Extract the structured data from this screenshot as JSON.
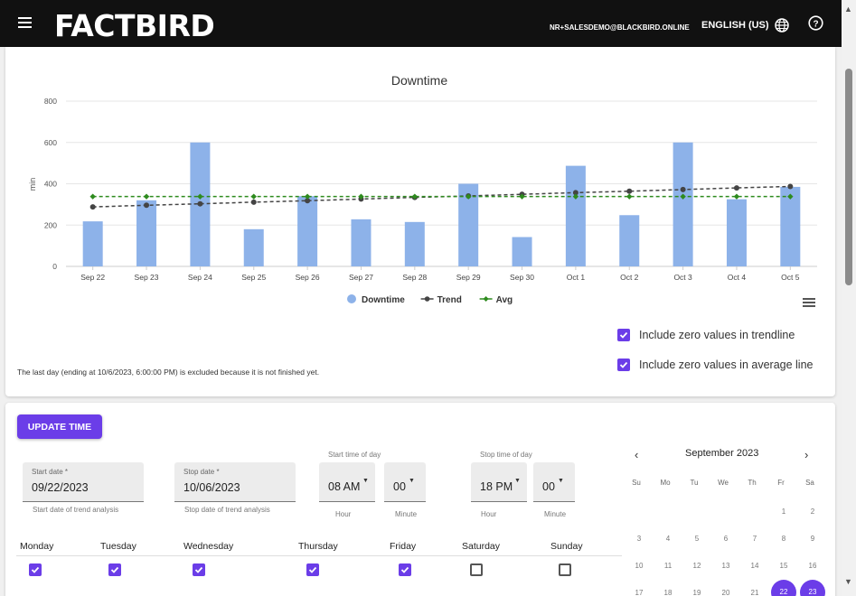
{
  "header": {
    "logo": "FACTBIRD",
    "user_email": "NR+SALESDEMO@BLACKBIRD.ONLINE",
    "language": "ENGLISH (US)"
  },
  "chart_data": {
    "type": "bar",
    "title": "Downtime",
    "ylabel": "min",
    "xlabel": "",
    "ylim": [
      0,
      800
    ],
    "yticks": [
      0,
      200,
      400,
      600,
      800
    ],
    "categories": [
      "Sep 22",
      "Sep 23",
      "Sep 24",
      "Sep 25",
      "Sep 26",
      "Sep 27",
      "Sep 28",
      "Sep 29",
      "Sep 30",
      "Oct 1",
      "Oct 2",
      "Oct 3",
      "Oct 4",
      "Oct 5"
    ],
    "series": [
      {
        "name": "Downtime",
        "kind": "bar",
        "color": "#8db2e9",
        "values": [
          218,
          320,
          600,
          180,
          340,
          228,
          215,
          400,
          142,
          487,
          248,
          600,
          325,
          385
        ]
      },
      {
        "name": "Trend",
        "kind": "line",
        "color": "#444444",
        "values": [
          288,
          296,
          303,
          311,
          318,
          326,
          334,
          341,
          349,
          357,
          364,
          372,
          380,
          387
        ]
      },
      {
        "name": "Avg",
        "kind": "line",
        "color": "#2e8b1e",
        "values": [
          338,
          338,
          338,
          338,
          338,
          338,
          338,
          338,
          338,
          338,
          338,
          338,
          338,
          338
        ]
      }
    ],
    "legend_position": "bottom",
    "grid": true
  },
  "options": {
    "trendline_zero": "Include zero values in trendline",
    "average_zero": "Include zero values in average line",
    "footnote": "The last day (ending at 10/6/2023, 6:00:00 PM) is excluded because it is not finished yet."
  },
  "form": {
    "update_button": "UPDATE TIME",
    "start_date": {
      "label": "Start date *",
      "value": "09/22/2023",
      "helper": "Start date of trend analysis"
    },
    "stop_date": {
      "label": "Stop date *",
      "value": "10/06/2023",
      "helper": "Stop date of trend analysis"
    },
    "start_time": {
      "label": "Start time of day",
      "hour": "08 AM",
      "minute": "00"
    },
    "stop_time": {
      "label": "Stop time of day",
      "hour": "18 PM",
      "minute": "00"
    },
    "hour_label": "Hour",
    "minute_label": "Minute",
    "days": [
      {
        "name": "Monday",
        "checked": true
      },
      {
        "name": "Tuesday",
        "checked": true
      },
      {
        "name": "Wednesday",
        "checked": true
      },
      {
        "name": "Thursday",
        "checked": true
      },
      {
        "name": "Friday",
        "checked": true
      },
      {
        "name": "Saturday",
        "checked": false
      },
      {
        "name": "Sunday",
        "checked": false
      }
    ]
  },
  "calendar": {
    "prev": "‹",
    "next": "›",
    "month": "September 2023",
    "dow": [
      "Su",
      "Mo",
      "Tu",
      "We",
      "Th",
      "Fr",
      "Sa"
    ],
    "rows": [
      [
        "",
        "",
        "",
        "",
        "",
        "1",
        "2"
      ],
      [
        "3",
        "4",
        "5",
        "6",
        "7",
        "8",
        "9"
      ],
      [
        "10",
        "11",
        "12",
        "13",
        "14",
        "15",
        "16"
      ],
      [
        "17",
        "18",
        "19",
        "20",
        "21",
        "22",
        "23"
      ]
    ],
    "selected": [
      "22",
      "23"
    ]
  },
  "colors": {
    "accent": "#6b3de8",
    "topbar": "#111111"
  }
}
